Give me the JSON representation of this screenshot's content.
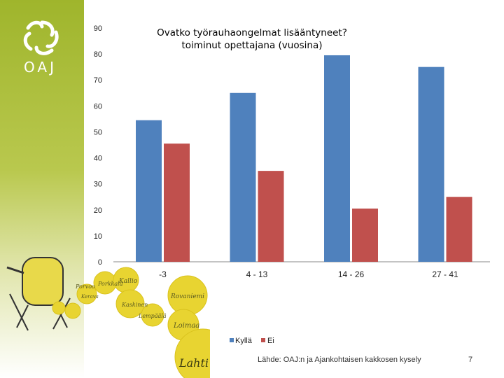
{
  "logo": {
    "text": "OAJ"
  },
  "decoration": {
    "words": [
      "Kallio",
      "Porvoo",
      "Porkkala",
      "Kaskinen",
      "Rovaniemi",
      "Kerava",
      "Lempäälä",
      "Loimaa",
      "Lahti"
    ]
  },
  "footer": {
    "source": "Lähde: OAJ:n ja Ajankohtaisen kakkosen kysely",
    "page": "7"
  },
  "colors": {
    "kylla": "#4f81bd",
    "ei": "#c0504d",
    "sidebar": "#9fb52c"
  },
  "chart_data": {
    "type": "bar",
    "title": "Ovatko työrauhaongelmat lisääntyneet? toiminut opettajana (vuosina)",
    "title_lines": [
      "Ovatko työrauhaongelmat lisääntyneet?",
      "toiminut opettajana (vuosina)"
    ],
    "categories": [
      "-3",
      "4 - 13",
      "14 - 26",
      "27 - 41"
    ],
    "series": [
      {
        "name": "Kyllä",
        "values": [
          54.5,
          65,
          79.5,
          75
        ]
      },
      {
        "name": "Ei",
        "values": [
          45.5,
          35,
          20.5,
          25
        ]
      }
    ],
    "ylim": [
      0,
      90
    ],
    "yticks": [
      0,
      10,
      20,
      30,
      40,
      50,
      60,
      70,
      80,
      90
    ],
    "grid": false,
    "legend_position": "bottom"
  }
}
